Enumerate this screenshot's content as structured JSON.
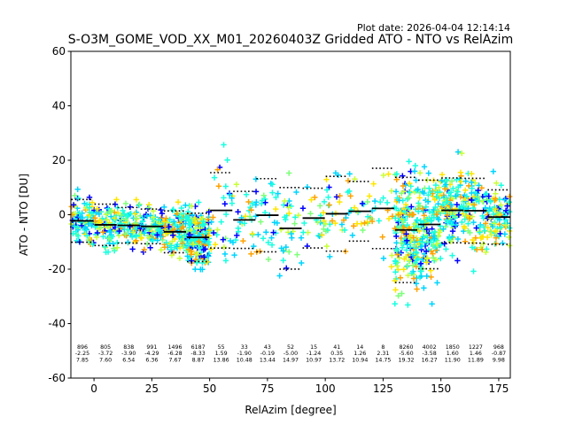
{
  "plot_date": "Plot date: 2026-04-04 12:14:14",
  "chart_data": {
    "type": "scatter",
    "title": "S-O3M_GOME_VOD_XX_M01_20260403Z Gridded ATO - NTO vs RelAzim",
    "xlabel": "RelAzim [degree]",
    "ylabel": "ATO - NTO [DU]",
    "xlim": [
      -10,
      180
    ],
    "ylim": [
      -60,
      60
    ],
    "xticks": [
      0,
      25,
      50,
      75,
      100,
      125,
      150,
      175
    ],
    "yticks": [
      -60,
      -40,
      -20,
      0,
      20,
      40,
      60
    ],
    "grid": false,
    "marker": "+",
    "colors": {
      "blue": "#0000ff",
      "cyan": "#00d5ff",
      "aqua": "#19ffe0",
      "green": "#7dff7a",
      "yellowgreen": "#c8ff38",
      "yellow": "#ffe600",
      "orange": "#ffa200",
      "mean_line": "#000000"
    },
    "bins": [
      {
        "center": -5,
        "count": "896",
        "mean": "-2.25",
        "std": "7.85",
        "mean_value": -2.25,
        "std_value": 7.85
      },
      {
        "center": 5,
        "count": "805",
        "mean": "-3.72",
        "std": "7.60",
        "mean_value": -3.72,
        "std_value": 7.6
      },
      {
        "center": 15,
        "count": "838",
        "mean": "-3.90",
        "std": "6.54",
        "mean_value": -3.9,
        "std_value": 6.54
      },
      {
        "center": 25,
        "count": "991",
        "mean": "-4.29",
        "std": "6.36",
        "mean_value": -4.29,
        "std_value": 6.36
      },
      {
        "center": 35,
        "count": "1496",
        "mean": "-6.28",
        "std": "7.67",
        "mean_value": -6.28,
        "std_value": 7.67
      },
      {
        "center": 45,
        "count": "6187",
        "mean": "-8.33",
        "std": "8.87",
        "mean_value": -8.33,
        "std_value": 8.87
      },
      {
        "center": 55,
        "count": "55",
        "mean": "1.59",
        "std": "13.86",
        "mean_value": 1.59,
        "std_value": 13.86
      },
      {
        "center": 65,
        "count": "33",
        "mean": "-1.90",
        "std": "10.48",
        "mean_value": -1.9,
        "std_value": 10.48
      },
      {
        "center": 75,
        "count": "43",
        "mean": "-0.19",
        "std": "13.44",
        "mean_value": -0.19,
        "std_value": 13.44
      },
      {
        "center": 85,
        "count": "52",
        "mean": "-5.00",
        "std": "14.97",
        "mean_value": -5.0,
        "std_value": 14.97
      },
      {
        "center": 95,
        "count": "15",
        "mean": "-1.24",
        "std": "10.97",
        "mean_value": -1.24,
        "std_value": 10.97
      },
      {
        "center": 105,
        "count": "41",
        "mean": "0.35",
        "std": "13.72",
        "mean_value": 0.35,
        "std_value": 13.72
      },
      {
        "center": 115,
        "count": "14",
        "mean": "1.26",
        "std": "10.94",
        "mean_value": 1.26,
        "std_value": 10.94
      },
      {
        "center": 125,
        "count": "8",
        "mean": "2.31",
        "std": "14.75",
        "mean_value": 2.31,
        "std_value": 14.75
      },
      {
        "center": 135,
        "count": "8260",
        "mean": "-5.60",
        "std": "19.32",
        "mean_value": -5.6,
        "std_value": 19.32
      },
      {
        "center": 145,
        "count": "4002",
        "mean": "-3.58",
        "std": "16.27",
        "mean_value": -3.58,
        "std_value": 16.27
      },
      {
        "center": 155,
        "count": "1850",
        "mean": "1.60",
        "std": "11.90",
        "mean_value": 1.6,
        "std_value": 11.9
      },
      {
        "center": 165,
        "count": "1227",
        "mean": "1.46",
        "std": "11.89",
        "mean_value": 1.46,
        "std_value": 11.89
      },
      {
        "center": 175,
        "count": "968",
        "mean": "-0.87",
        "std": "9.98",
        "mean_value": -0.87,
        "std_value": 9.98
      }
    ]
  }
}
